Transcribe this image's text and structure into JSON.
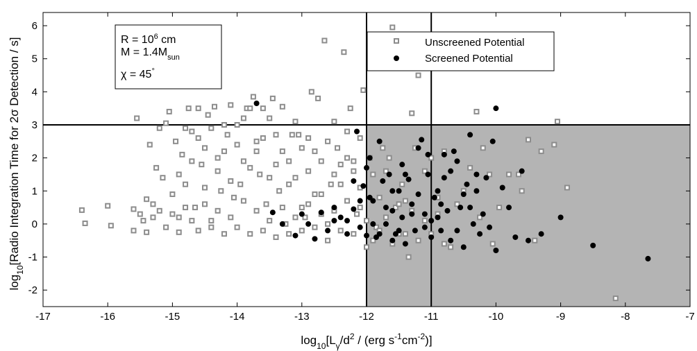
{
  "chart_data": {
    "type": "scatter",
    "xlim": [
      -17,
      -7
    ],
    "ylim": [
      -2.5,
      6.4
    ],
    "xticks": [
      -17,
      -16,
      -15,
      -14,
      -13,
      -12,
      -11,
      -10,
      -9,
      -8,
      -7
    ],
    "yticks": [
      -2,
      -1,
      0,
      1,
      2,
      3,
      4,
      5,
      6
    ],
    "xlabel": {
      "pre": "log",
      "sub1": "10",
      "mid": "[L",
      "sub2": "γ",
      "mid2": "/d",
      "sup1": "2",
      "mid3": " / (erg s",
      "sup2": "-1",
      "mid4": "cm",
      "sup3": "-2",
      "post": ")]"
    },
    "ylabel": {
      "pre": "log",
      "sub": "10",
      "post": "[Radio Integration Time for 2σ Detection / s]"
    },
    "shaded_region": {
      "x": [
        -12,
        -7
      ],
      "y": [
        -2.5,
        3
      ],
      "color": "#b4b4b4"
    },
    "reference_lines": {
      "vertical": [
        -12,
        -11
      ],
      "horizontal": [
        3
      ]
    },
    "annotation": {
      "r_pre": "R = 10",
      "r_sup": "6",
      "r_post": " cm",
      "m_pre": "M = 1.4M",
      "m_sub": "sun",
      "chi_pre": "χ = 45",
      "chi_sup": "°"
    },
    "legend": {
      "position": "top-right",
      "entries": [
        "Unscreened Potential",
        "Screened Potential"
      ]
    },
    "series": [
      {
        "name": "Unscreened Potential",
        "marker": "square",
        "color": "#8c8c8c",
        "points": [
          [
            -16.4,
            0.42
          ],
          [
            -16.35,
            0.02
          ],
          [
            -16.0,
            0.55
          ],
          [
            -15.95,
            -0.05
          ],
          [
            -15.6,
            0.45
          ],
          [
            -15.55,
            3.2
          ],
          [
            -15.5,
            0.3
          ],
          [
            -15.45,
            0.1
          ],
          [
            -15.4,
            0.75
          ],
          [
            -15.35,
            2.4
          ],
          [
            -15.3,
            0.6
          ],
          [
            -15.25,
            1.7
          ],
          [
            -15.2,
            2.9
          ],
          [
            -15.15,
            1.4
          ],
          [
            -15.1,
            3.05
          ],
          [
            -15.05,
            3.4
          ],
          [
            -15.0,
            0.9
          ],
          [
            -14.95,
            2.5
          ],
          [
            -14.9,
            0.2
          ],
          [
            -14.85,
            2.1
          ],
          [
            -14.8,
            1.2
          ],
          [
            -14.75,
            3.5
          ],
          [
            -14.7,
            2.8
          ],
          [
            -14.65,
            0.5
          ],
          [
            -14.6,
            3.5
          ],
          [
            -14.55,
            1.8
          ],
          [
            -14.5,
            2.3
          ],
          [
            -14.45,
            3.3
          ],
          [
            -14.4,
            0.1
          ],
          [
            -14.35,
            3.55
          ],
          [
            -14.3,
            2.0
          ],
          [
            -14.25,
            1.0
          ],
          [
            -14.2,
            3.0
          ],
          [
            -14.15,
            2.7
          ],
          [
            -14.1,
            3.6
          ],
          [
            -14.05,
            0.8
          ],
          [
            -14.0,
            2.4
          ],
          [
            -13.95,
            1.2
          ],
          [
            -13.9,
            3.2
          ],
          [
            -13.85,
            3.5
          ],
          [
            -13.8,
            3.5
          ],
          [
            -13.75,
            3.85
          ],
          [
            -13.7,
            2.2
          ],
          [
            -13.65,
            1.5
          ],
          [
            -13.6,
            3.5
          ],
          [
            -13.55,
            0.6
          ],
          [
            -13.5,
            3.2
          ],
          [
            -13.45,
            3.8
          ],
          [
            -13.4,
            2.7
          ],
          [
            -13.35,
            1.0
          ],
          [
            -13.3,
            3.55
          ],
          [
            -13.25,
            0.0
          ],
          [
            -13.2,
            1.9
          ],
          [
            -13.15,
            2.7
          ],
          [
            -13.1,
            3.1
          ],
          [
            -13.05,
            2.7
          ],
          [
            -13.0,
            0.5
          ],
          [
            -12.95,
            0.2
          ],
          [
            -12.9,
            1.6
          ],
          [
            -12.85,
            4.0
          ],
          [
            -12.8,
            2.2
          ],
          [
            -12.75,
            3.8
          ],
          [
            -12.7,
            0.9
          ],
          [
            -12.65,
            5.55
          ],
          [
            -12.6,
            0.0
          ],
          [
            -12.55,
            1.2
          ],
          [
            -12.5,
            3.1
          ],
          [
            -12.45,
            2.3
          ],
          [
            -12.4,
            1.8
          ],
          [
            -12.35,
            5.2
          ],
          [
            -12.3,
            2.0
          ],
          [
            -12.25,
            3.5
          ],
          [
            -12.2,
            1.6
          ],
          [
            -12.15,
            0.3
          ],
          [
            -12.1,
            2.6
          ],
          [
            -12.05,
            4.05
          ],
          [
            -12.0,
            -0.7
          ],
          [
            -11.95,
            2.0
          ],
          [
            -11.9,
            1.5
          ],
          [
            -11.85,
            -0.1
          ],
          [
            -11.8,
            0.8
          ],
          [
            -11.75,
            2.3
          ],
          [
            -11.7,
            1.6
          ],
          [
            -11.65,
            2.0
          ],
          [
            -11.6,
            5.95
          ],
          [
            -11.55,
            0.5
          ],
          [
            -11.5,
            -0.3
          ],
          [
            -11.45,
            1.2
          ],
          [
            -11.4,
            0.7
          ],
          [
            -11.35,
            -1.0
          ],
          [
            -11.3,
            3.35
          ],
          [
            -11.25,
            2.3
          ],
          [
            -11.2,
            4.5
          ],
          [
            -11.1,
            1.6
          ],
          [
            -11.0,
            2.0
          ],
          [
            -10.9,
            0.8
          ],
          [
            -10.8,
            2.2
          ],
          [
            -10.7,
            -0.7
          ],
          [
            -10.6,
            0.6
          ],
          [
            -10.5,
            1.0
          ],
          [
            -10.4,
            1.7
          ],
          [
            -10.3,
            3.4
          ],
          [
            -10.25,
            0.2
          ],
          [
            -10.2,
            2.3
          ],
          [
            -10.1,
            1.5
          ],
          [
            -10.05,
            -0.6
          ],
          [
            -9.95,
            0.5
          ],
          [
            -9.8,
            1.5
          ],
          [
            -9.65,
            1.5
          ],
          [
            -9.6,
            1.0
          ],
          [
            -9.5,
            2.55
          ],
          [
            -9.4,
            -0.5
          ],
          [
            -9.3,
            2.2
          ],
          [
            -9.1,
            2.4
          ],
          [
            -9.05,
            3.1
          ],
          [
            -8.9,
            1.1
          ],
          [
            -8.15,
            -2.25
          ],
          [
            -15.6,
            -0.2
          ],
          [
            -15.4,
            -0.25
          ],
          [
            -15.3,
            0.2
          ],
          [
            -15.2,
            0.4
          ],
          [
            -15.1,
            -0.1
          ],
          [
            -15.0,
            0.3
          ],
          [
            -14.9,
            -0.25
          ],
          [
            -14.8,
            0.5
          ],
          [
            -14.7,
            0.1
          ],
          [
            -14.6,
            -0.2
          ],
          [
            -14.5,
            0.6
          ],
          [
            -14.4,
            -0.1
          ],
          [
            -14.3,
            0.4
          ],
          [
            -14.2,
            -0.3
          ],
          [
            -14.1,
            0.2
          ],
          [
            -14.0,
            -0.1
          ],
          [
            -13.9,
            0.7
          ],
          [
            -13.8,
            -0.3
          ],
          [
            -13.7,
            0.4
          ],
          [
            -13.6,
            -0.2
          ],
          [
            -13.5,
            0.1
          ],
          [
            -13.4,
            -0.4
          ],
          [
            -13.3,
            0.5
          ],
          [
            -13.2,
            -0.3
          ],
          [
            -13.1,
            0.2
          ],
          [
            -13.0,
            -0.2
          ],
          [
            -12.9,
            0.6
          ],
          [
            -12.8,
            -0.1
          ],
          [
            -12.7,
            0.3
          ],
          [
            -12.6,
            -0.5
          ],
          [
            -12.5,
            0.4
          ],
          [
            -12.4,
            -0.2
          ],
          [
            -12.3,
            0.7
          ],
          [
            -12.2,
            -0.3
          ],
          [
            -12.1,
            0.5
          ],
          [
            -12.0,
            0.1
          ],
          [
            -11.9,
            -0.5
          ],
          [
            -11.8,
            -0.2
          ],
          [
            -11.7,
            0.2
          ],
          [
            -11.6,
            -0.6
          ],
          [
            -11.5,
            0.6
          ],
          [
            -11.4,
            -0.3
          ],
          [
            -11.3,
            0.4
          ],
          [
            -11.2,
            -0.5
          ],
          [
            -11.1,
            0.1
          ],
          [
            -11.0,
            -0.3
          ],
          [
            -10.9,
            0.3
          ],
          [
            -10.8,
            -0.6
          ],
          [
            -14.9,
            1.5
          ],
          [
            -14.7,
            1.9
          ],
          [
            -14.5,
            1.1
          ],
          [
            -14.3,
            1.6
          ],
          [
            -14.1,
            1.3
          ],
          [
            -13.9,
            1.9
          ],
          [
            -13.7,
            2.5
          ],
          [
            -13.5,
            1.4
          ],
          [
            -13.3,
            2.2
          ],
          [
            -13.1,
            1.4
          ],
          [
            -12.9,
            2.6
          ],
          [
            -12.7,
            1.9
          ],
          [
            -12.5,
            1.5
          ],
          [
            -12.3,
            2.8
          ],
          [
            -12.1,
            1.1
          ],
          [
            -14.6,
            2.6
          ],
          [
            -14.2,
            2.2
          ],
          [
            -13.8,
            1.7
          ],
          [
            -13.4,
            1.8
          ],
          [
            -13.0,
            2.3
          ],
          [
            -12.6,
            2.5
          ],
          [
            -12.2,
            1.9
          ],
          [
            -14.8,
            2.9
          ],
          [
            -14.4,
            2.9
          ],
          [
            -14.0,
            3.0
          ],
          [
            -13.6,
            2.6
          ],
          [
            -13.2,
            1.2
          ],
          [
            -12.8,
            0.9
          ],
          [
            -12.4,
            1.2
          ]
        ]
      },
      {
        "name": "Screened Potential",
        "marker": "circle",
        "color": "#000000",
        "points": [
          [
            -13.7,
            3.65
          ],
          [
            -13.45,
            0.35
          ],
          [
            -13.3,
            0.0
          ],
          [
            -13.1,
            -0.35
          ],
          [
            -13.0,
            0.3
          ],
          [
            -12.9,
            0.0
          ],
          [
            -12.8,
            -0.45
          ],
          [
            -12.7,
            0.35
          ],
          [
            -12.6,
            -0.2
          ],
          [
            -12.5,
            0.1
          ],
          [
            -12.4,
            0.2
          ],
          [
            -12.3,
            -0.3
          ],
          [
            -12.2,
            0.45
          ],
          [
            -12.15,
            2.8
          ],
          [
            -12.1,
            -0.1
          ],
          [
            -12.05,
            1.15
          ],
          [
            -12.0,
            1.7
          ],
          [
            -11.95,
            2.0
          ],
          [
            -11.9,
            0.7
          ],
          [
            -11.85,
            -0.4
          ],
          [
            -11.8,
            2.5
          ],
          [
            -11.75,
            1.3
          ],
          [
            -11.7,
            0.0
          ],
          [
            -11.65,
            1.5
          ],
          [
            -11.6,
            0.4
          ],
          [
            -11.55,
            -0.3
          ],
          [
            -11.5,
            1.0
          ],
          [
            -11.45,
            0.2
          ],
          [
            -11.4,
            -0.6
          ],
          [
            -11.35,
            1.35
          ],
          [
            -11.3,
            0.6
          ],
          [
            -11.25,
            -0.2
          ],
          [
            -11.2,
            2.3
          ],
          [
            -11.15,
            2.55
          ],
          [
            -11.1,
            0.3
          ],
          [
            -11.05,
            1.5
          ],
          [
            -11.0,
            -0.4
          ],
          [
            -10.95,
            0.8
          ],
          [
            -10.9,
            1.0
          ],
          [
            -10.85,
            -0.2
          ],
          [
            -10.8,
            2.1
          ],
          [
            -10.75,
            0.4
          ],
          [
            -10.7,
            -0.5
          ],
          [
            -10.65,
            2.2
          ],
          [
            -10.6,
            1.9
          ],
          [
            -10.55,
            0.5
          ],
          [
            -10.5,
            -0.7
          ],
          [
            -10.45,
            1.2
          ],
          [
            -10.4,
            2.7
          ],
          [
            -10.35,
            0.0
          ],
          [
            -10.3,
            1.5
          ],
          [
            -10.25,
            -0.3
          ],
          [
            -10.2,
            0.3
          ],
          [
            -10.15,
            1.4
          ],
          [
            -10.05,
            2.5
          ],
          [
            -10.0,
            3.5
          ],
          [
            -10.0,
            -0.8
          ],
          [
            -9.9,
            1.1
          ],
          [
            -9.8,
            0.5
          ],
          [
            -9.7,
            -0.4
          ],
          [
            -9.6,
            1.6
          ],
          [
            -9.5,
            -0.5
          ],
          [
            -9.3,
            -0.3
          ],
          [
            -9.0,
            0.2
          ],
          [
            -8.5,
            -0.65
          ],
          [
            -7.65,
            -1.05
          ],
          [
            -12.5,
            0.5
          ],
          [
            -12.3,
            0.1
          ],
          [
            -12.1,
            0.7
          ],
          [
            -11.9,
            0.0
          ],
          [
            -11.7,
            0.5
          ],
          [
            -11.5,
            -0.2
          ],
          [
            -11.3,
            0.3
          ],
          [
            -11.1,
            -0.1
          ],
          [
            -10.9,
            0.2
          ],
          [
            -10.7,
            1.6
          ],
          [
            -10.5,
            0.9
          ],
          [
            -10.3,
            1.0
          ],
          [
            -10.1,
            -0.1
          ],
          [
            -11.6,
            1.0
          ],
          [
            -11.4,
            1.5
          ],
          [
            -11.2,
            0.9
          ],
          [
            -11.8,
            -0.3
          ],
          [
            -12.2,
            1.3
          ],
          [
            -12.0,
            -0.35
          ],
          [
            -11.0,
            0.1
          ],
          [
            -10.8,
            1.4
          ],
          [
            -10.6,
            -0.2
          ],
          [
            -10.4,
            0.5
          ],
          [
            -11.6,
            -0.5
          ],
          [
            -11.95,
            0.8
          ],
          [
            -11.45,
            1.8
          ],
          [
            -11.05,
            2.1
          ],
          [
            -10.85,
            0.6
          ]
        ]
      }
    ]
  }
}
